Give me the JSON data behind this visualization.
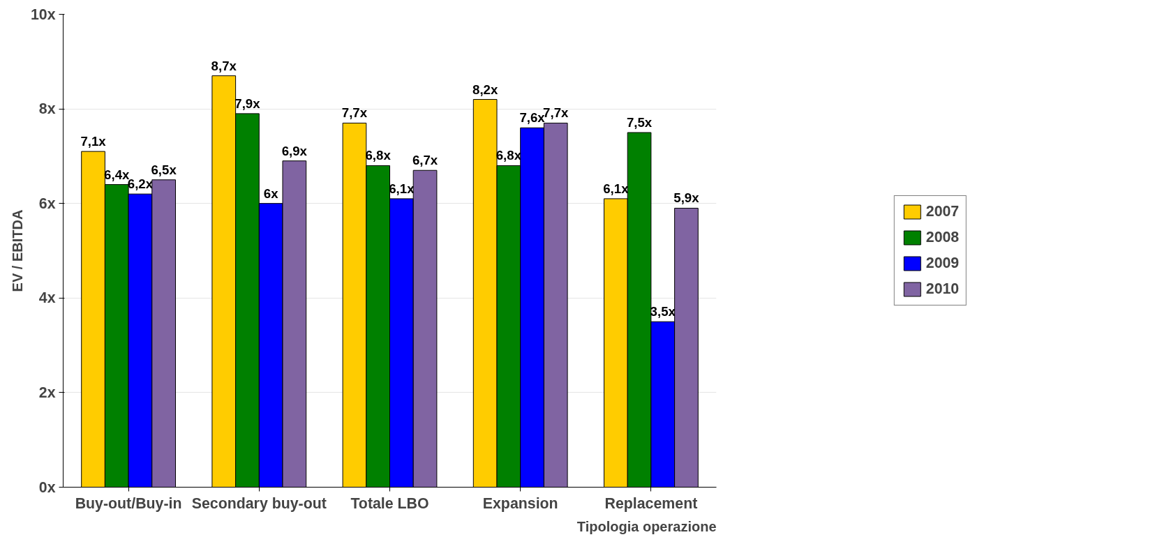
{
  "chart_data": {
    "type": "bar",
    "ylabel": "EV / EBITDA",
    "xlabel": "Tipologia operazione",
    "categories": [
      "Buy-out/Buy-in",
      "Secondary buy-out",
      "Totale LBO",
      "Expansion",
      "Replacement"
    ],
    "series": [
      {
        "name": "2007",
        "color": "#ffcc00",
        "values": [
          7.1,
          8.7,
          7.7,
          8.2,
          6.1
        ],
        "value_labels": [
          "7,1x",
          "8,7x",
          "7,7x",
          "8,2x",
          "6,1x"
        ]
      },
      {
        "name": "2008",
        "color": "#008000",
        "values": [
          6.4,
          7.9,
          6.8,
          6.8,
          7.5
        ],
        "value_labels": [
          "6,4x",
          "7,9x",
          "6,8x",
          "6,8x",
          "7,5x"
        ]
      },
      {
        "name": "2009",
        "color": "#0000ff",
        "values": [
          6.2,
          6,
          6.1,
          7.6,
          3.5
        ],
        "value_labels": [
          "6,2x",
          "6x",
          "6,1x",
          "7,6x",
          "3,5x"
        ]
      },
      {
        "name": "2010",
        "color": "#8064a2",
        "values": [
          6.5,
          6.9,
          6.7,
          7.7,
          5.9
        ],
        "value_labels": [
          "6,5x",
          "6,9x",
          "6,7x",
          "7,7x",
          "5,9x"
        ]
      }
    ],
    "ylim": [
      0,
      10
    ],
    "yticks": [
      {
        "value": 0,
        "label": "0x"
      },
      {
        "value": 2,
        "label": "2x"
      },
      {
        "value": 4,
        "label": "4x"
      },
      {
        "value": 6,
        "label": "6x"
      },
      {
        "value": 8,
        "label": "8x"
      },
      {
        "value": 10,
        "label": "10x"
      }
    ],
    "grid": "y",
    "legend": "right"
  }
}
